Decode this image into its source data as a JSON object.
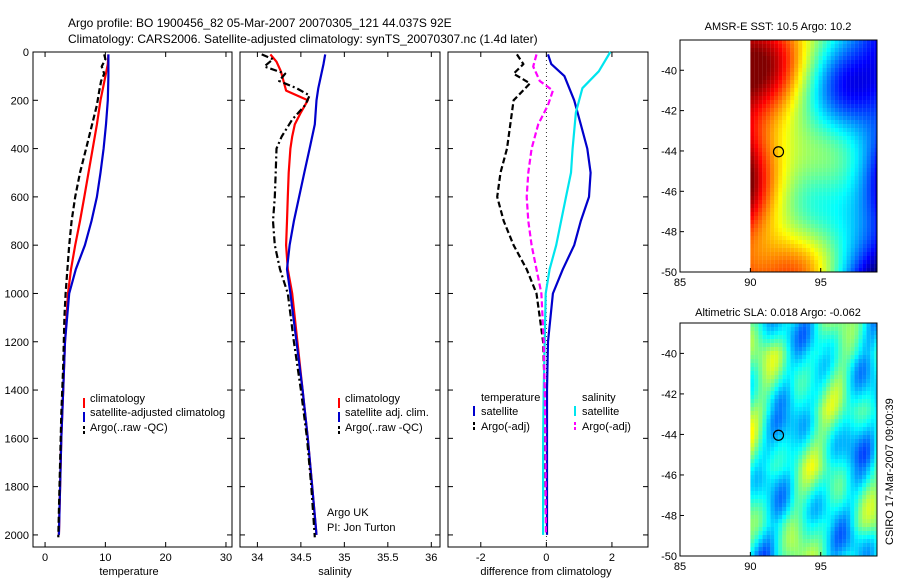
{
  "title_line1": "Argo profile: BO 1900456_82 05-Mar-2007 20070305_121 44.037S 92E",
  "title_line2": "Climatology: CARS2006. Satellite-adjusted climatology: synTS_20070307.nc (1.4d later)",
  "side_credit": "CSIRO 17-Mar-2007 09:00:39",
  "colors": {
    "climatology": "#ff0000",
    "satellite": "#0000cc",
    "argo": "#000000",
    "sat_salinity": "#00e5ee",
    "argo_salinity": "#ff00ff"
  },
  "chart_data": [
    {
      "type": "line",
      "id": "temperature",
      "xlabel": "temperature",
      "ylabel": "",
      "xlim": [
        -2,
        31
      ],
      "ylim": [
        2050,
        0
      ],
      "xticks": [
        0,
        10,
        20,
        30
      ],
      "yticks": [
        0,
        200,
        400,
        600,
        800,
        1000,
        1200,
        1400,
        1600,
        1800,
        2000
      ],
      "grid": false,
      "legend_position": "bottom-right",
      "legend": [
        "climatology",
        "satellite-adjusted climatolog",
        "Argo(..raw -QC)"
      ],
      "series": [
        {
          "name": "climatology",
          "style": "solid",
          "color": "climatology",
          "points": [
            [
              10.5,
              10
            ],
            [
              10.4,
              50
            ],
            [
              10.0,
              100
            ],
            [
              9.2,
              200
            ],
            [
              8.6,
              300
            ],
            [
              7.9,
              400
            ],
            [
              7.2,
              500
            ],
            [
              6.5,
              600
            ],
            [
              5.8,
              700
            ],
            [
              5.0,
              800
            ],
            [
              4.3,
              900
            ],
            [
              3.8,
              1000
            ],
            [
              3.3,
              1200
            ],
            [
              3.0,
              1400
            ],
            [
              2.7,
              1600
            ],
            [
              2.5,
              1800
            ],
            [
              2.3,
              2000
            ]
          ]
        },
        {
          "name": "satellite-adjusted climatolog",
          "style": "solid",
          "color": "satellite",
          "points": [
            [
              10.5,
              10
            ],
            [
              10.5,
              50
            ],
            [
              10.5,
              100
            ],
            [
              10.4,
              200
            ],
            [
              10.1,
              300
            ],
            [
              9.7,
              400
            ],
            [
              9.2,
              500
            ],
            [
              8.6,
              600
            ],
            [
              7.7,
              700
            ],
            [
              6.6,
              800
            ],
            [
              5.1,
              900
            ],
            [
              4.0,
              1000
            ],
            [
              3.3,
              1200
            ],
            [
              3.0,
              1400
            ],
            [
              2.7,
              1600
            ],
            [
              2.5,
              1800
            ],
            [
              2.3,
              2000
            ]
          ]
        },
        {
          "name": "Argo(..raw -QC)",
          "style": "dashed",
          "color": "argo",
          "points": [
            [
              9.8,
              10
            ],
            [
              10.0,
              30
            ],
            [
              9.4,
              60
            ],
            [
              9.8,
              90
            ],
            [
              9.3,
              120
            ],
            [
              9.0,
              160
            ],
            [
              8.6,
              220
            ],
            [
              7.8,
              300
            ],
            [
              6.8,
              400
            ],
            [
              5.8,
              500
            ],
            [
              5.0,
              600
            ],
            [
              4.4,
              700
            ],
            [
              4.0,
              800
            ],
            [
              3.7,
              900
            ],
            [
              3.4,
              1000
            ],
            [
              3.2,
              1100
            ],
            [
              3.0,
              1300
            ],
            [
              2.7,
              1500
            ],
            [
              2.5,
              1700
            ],
            [
              2.3,
              1900
            ],
            [
              2.2,
              2010
            ]
          ]
        }
      ]
    },
    {
      "type": "line",
      "id": "salinity",
      "xlabel": "salinity",
      "ylabel": "",
      "xlim": [
        33.8,
        36.1
      ],
      "ylim": [
        2050,
        0
      ],
      "xticks": [
        34,
        34.5,
        35,
        35.5,
        36
      ],
      "xticklabels": [
        "34",
        "34.5",
        "35",
        "35.5",
        "36"
      ],
      "grid": false,
      "legend_position": "bottom-right",
      "legend": [
        "climatology",
        "satellite adj. clim.",
        "Argo(..raw -QC)"
      ],
      "annotations": [
        "Argo UK",
        "PI: Jon Turton"
      ],
      "series": [
        {
          "name": "climatology",
          "style": "solid",
          "color": "climatology",
          "points": [
            [
              34.15,
              10
            ],
            [
              34.22,
              40
            ],
            [
              34.27,
              80
            ],
            [
              34.3,
              120
            ],
            [
              34.33,
              160
            ],
            [
              34.58,
              200
            ],
            [
              34.5,
              250
            ],
            [
              34.43,
              300
            ],
            [
              34.4,
              350
            ],
            [
              34.38,
              400
            ],
            [
              34.36,
              500
            ],
            [
              34.35,
              600
            ],
            [
              34.34,
              700
            ],
            [
              34.33,
              800
            ],
            [
              34.35,
              900
            ],
            [
              34.4,
              1000
            ],
            [
              34.46,
              1200
            ],
            [
              34.52,
              1400
            ],
            [
              34.58,
              1600
            ],
            [
              34.63,
              1800
            ],
            [
              34.68,
              2000
            ]
          ]
        },
        {
          "name": "satellite adj. clim.",
          "style": "solid",
          "color": "satellite",
          "points": [
            [
              34.78,
              10
            ],
            [
              34.76,
              50
            ],
            [
              34.73,
              100
            ],
            [
              34.7,
              150
            ],
            [
              34.68,
              200
            ],
            [
              34.66,
              300
            ],
            [
              34.6,
              400
            ],
            [
              34.54,
              500
            ],
            [
              34.48,
              600
            ],
            [
              34.42,
              700
            ],
            [
              34.37,
              800
            ],
            [
              34.34,
              900
            ],
            [
              34.38,
              1000
            ],
            [
              34.45,
              1200
            ],
            [
              34.52,
              1400
            ],
            [
              34.58,
              1600
            ],
            [
              34.63,
              1800
            ],
            [
              34.68,
              2000
            ]
          ]
        },
        {
          "name": "Argo(..raw -QC)",
          "style": "dashdot",
          "color": "argo",
          "points": [
            [
              34.05,
              10
            ],
            [
              34.18,
              30
            ],
            [
              34.08,
              60
            ],
            [
              34.32,
              90
            ],
            [
              34.25,
              120
            ],
            [
              34.45,
              150
            ],
            [
              34.6,
              180
            ],
            [
              34.55,
              220
            ],
            [
              34.4,
              280
            ],
            [
              34.28,
              350
            ],
            [
              34.22,
              400
            ],
            [
              34.21,
              500
            ],
            [
              34.2,
              600
            ],
            [
              34.18,
              700
            ],
            [
              34.2,
              800
            ],
            [
              34.26,
              900
            ],
            [
              34.35,
              1000
            ],
            [
              34.42,
              1200
            ],
            [
              34.5,
              1400
            ],
            [
              34.57,
              1600
            ],
            [
              34.62,
              1800
            ],
            [
              34.66,
              2010
            ]
          ]
        }
      ]
    },
    {
      "type": "line",
      "id": "difference",
      "xlabel": "difference from climatology",
      "ylabel": "",
      "xlim": [
        -3,
        3.1
      ],
      "ylim": [
        2050,
        0
      ],
      "xticks": [
        -2,
        0,
        2
      ],
      "grid": false,
      "legend_position": "bottom",
      "legend": [
        "temperature",
        "satellite",
        "Argo(-adj)",
        "salinity",
        "satellite",
        "Argo(-adj)"
      ],
      "series": [
        {
          "name": "satellite",
          "group": "temperature",
          "style": "solid",
          "color": "satellite",
          "points": [
            [
              0.05,
              10
            ],
            [
              0.15,
              50
            ],
            [
              0.55,
              100
            ],
            [
              0.85,
              200
            ],
            [
              1.05,
              300
            ],
            [
              1.25,
              400
            ],
            [
              1.35,
              500
            ],
            [
              1.3,
              600
            ],
            [
              1.05,
              700
            ],
            [
              0.85,
              800
            ],
            [
              0.5,
              900
            ],
            [
              0.2,
              1000
            ],
            [
              0.05,
              1200
            ],
            [
              0.02,
              1400
            ],
            [
              0.02,
              1600
            ],
            [
              0.02,
              1800
            ],
            [
              0.02,
              2000
            ]
          ]
        },
        {
          "name": "Argo(-adj)",
          "group": "temperature",
          "style": "dashed",
          "color": "argo",
          "points": [
            [
              -0.9,
              10
            ],
            [
              -0.7,
              50
            ],
            [
              -1.0,
              90
            ],
            [
              -0.5,
              130
            ],
            [
              -1.0,
              200
            ],
            [
              -1.1,
              300
            ],
            [
              -1.2,
              400
            ],
            [
              -1.4,
              500
            ],
            [
              -1.5,
              600
            ],
            [
              -1.3,
              700
            ],
            [
              -1.0,
              800
            ],
            [
              -0.6,
              900
            ],
            [
              -0.3,
              1000
            ],
            [
              -0.1,
              1200
            ],
            [
              -0.05,
              1400
            ],
            [
              -0.05,
              1600
            ],
            [
              -0.03,
              1800
            ],
            [
              0.0,
              2000
            ]
          ]
        },
        {
          "name": "satellite",
          "group": "salinity",
          "style": "solid",
          "color": "sat_salinity",
          "points": [
            [
              1.95,
              0
            ],
            [
              1.6,
              80
            ],
            [
              1.1,
              150
            ],
            [
              0.9,
              250
            ],
            [
              0.8,
              400
            ],
            [
              0.75,
              500
            ],
            [
              0.6,
              600
            ],
            [
              0.45,
              700
            ],
            [
              0.3,
              800
            ],
            [
              0.1,
              900
            ],
            [
              -0.02,
              1000
            ],
            [
              -0.05,
              1200
            ],
            [
              -0.08,
              1400
            ],
            [
              -0.1,
              1600
            ],
            [
              -0.1,
              1800
            ],
            [
              -0.1,
              2000
            ]
          ]
        },
        {
          "name": "Argo(-adj)",
          "group": "salinity",
          "style": "dashed",
          "color": "argo_salinity",
          "points": [
            [
              -0.3,
              10
            ],
            [
              -0.4,
              60
            ],
            [
              -0.2,
              120
            ],
            [
              0.2,
              160
            ],
            [
              0.05,
              220
            ],
            [
              -0.25,
              300
            ],
            [
              -0.45,
              400
            ],
            [
              -0.55,
              500
            ],
            [
              -0.6,
              600
            ],
            [
              -0.55,
              700
            ],
            [
              -0.45,
              800
            ],
            [
              -0.3,
              900
            ],
            [
              -0.15,
              1000
            ],
            [
              -0.08,
              1200
            ],
            [
              -0.05,
              1400
            ],
            [
              -0.03,
              1600
            ],
            [
              -0.02,
              1800
            ],
            [
              -0.01,
              2000
            ]
          ]
        }
      ]
    },
    {
      "type": "heatmap",
      "id": "sst-map",
      "title": "AMSR-E SST: 10.5 Argo: 10.2",
      "xlim": [
        85,
        99
      ],
      "ylim": [
        -50,
        -38.5
      ],
      "xticks": [
        85,
        90,
        95
      ],
      "yticks": [
        -50,
        -48,
        -46,
        -44,
        -42,
        -40
      ],
      "data_xrange": [
        90,
        99
      ],
      "marker": [
        92,
        -44.04
      ],
      "colormap": "jet"
    },
    {
      "type": "heatmap",
      "id": "sla-map",
      "title": "Altimetric SLA: 0.018 Argo: -0.062",
      "xlim": [
        85,
        99
      ],
      "ylim": [
        -50,
        -38.5
      ],
      "xticks": [
        85,
        90,
        95
      ],
      "yticks": [
        -50,
        -48,
        -46,
        -44,
        -42,
        -40
      ],
      "data_xrange": [
        90,
        99
      ],
      "marker": [
        92,
        -44.04
      ],
      "colormap": "jet"
    }
  ]
}
